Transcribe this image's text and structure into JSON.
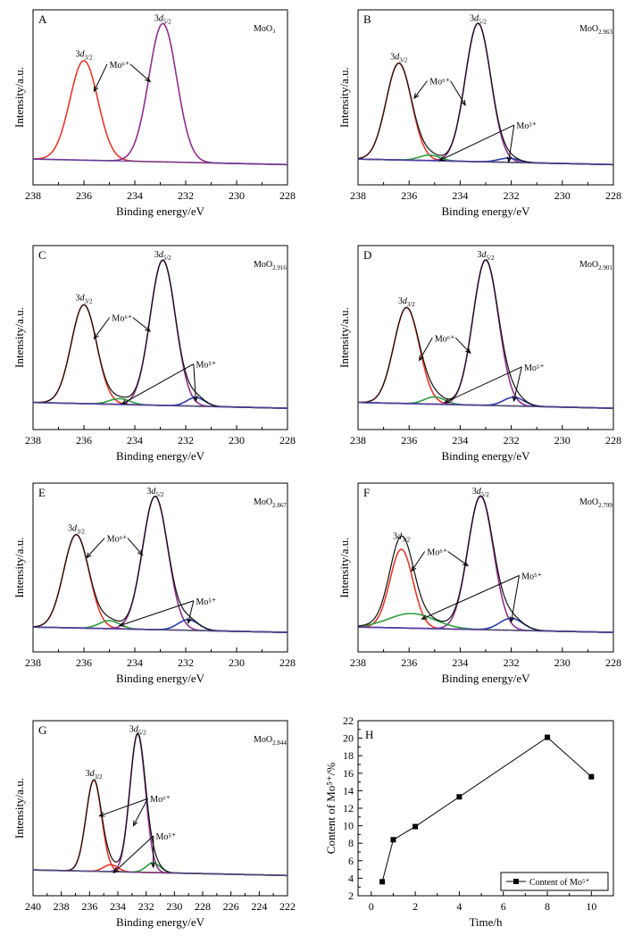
{
  "chart_data": [
    {
      "type": "line",
      "panel": "A",
      "sample": "MoO₃",
      "xlabel": "Binding energy/eV",
      "ylabel": "Intensity/a.u.",
      "xlim": [
        238,
        228
      ],
      "xticks": [
        238,
        236,
        234,
        232,
        230,
        228
      ],
      "peaks": [
        {
          "label": "3d3/2",
          "center": 236.0,
          "height": 0.72,
          "width": 0.55,
          "color": "#e8382b"
        },
        {
          "label": "3d5/2",
          "center": 232.9,
          "height": 1.0,
          "width": 0.55,
          "color": "#8e2f8f"
        }
      ],
      "annotations": [
        {
          "text": "Mo⁶⁺",
          "x": 234.6,
          "y": 0.72,
          "targets": [
            [
              235.6,
              0.55
            ],
            [
              233.4,
              0.62
            ]
          ]
        },
        {
          "text": "3d3/2",
          "x": 236.0,
          "y": 0.8
        },
        {
          "text": "3d5/2",
          "x": 232.9,
          "y": 1.06
        }
      ]
    },
    {
      "type": "line",
      "panel": "B",
      "sample": "MoO2.963",
      "xlabel": "Binding energy/eV",
      "ylabel": "Intensity/a.u.",
      "xlim": [
        238,
        228
      ],
      "xticks": [
        238,
        236,
        234,
        232,
        230,
        228
      ],
      "peaks": [
        {
          "label": "3d3/2",
          "center": 236.4,
          "height": 0.7,
          "width": 0.5,
          "color": "#e8382b"
        },
        {
          "label": "3d5/2",
          "center": 233.3,
          "height": 1.0,
          "width": 0.5,
          "color": "#8e2f8f"
        },
        {
          "label": "Mo5+ 3d3/2",
          "center": 235.2,
          "height": 0.04,
          "width": 0.4,
          "color": "#2e9e3e"
        },
        {
          "label": "Mo5+ 3d5/2",
          "center": 232.1,
          "height": 0.03,
          "width": 0.4,
          "color": "#2b3ea8"
        }
      ],
      "annotations": [
        {
          "text": "Mo⁶⁺",
          "x": 234.8,
          "y": 0.6,
          "targets": [
            [
              235.8,
              0.5
            ],
            [
              233.8,
              0.45
            ]
          ]
        },
        {
          "text": "Mo⁵⁺",
          "x": 231.4,
          "y": 0.28,
          "targets": [
            [
              234.8,
              0.05
            ],
            [
              232.1,
              0.04
            ]
          ]
        },
        {
          "text": "3d3/2",
          "x": 236.4,
          "y": 0.78
        },
        {
          "text": "3d5/2",
          "x": 233.3,
          "y": 1.06
        }
      ]
    },
    {
      "type": "line",
      "panel": "C",
      "sample": "MoO2.916",
      "xlabel": "Binding energy/eV",
      "ylabel": "Intensity/a.u.",
      "xlim": [
        238,
        228
      ],
      "xticks": [
        238,
        236,
        234,
        232,
        230,
        228
      ],
      "peaks": [
        {
          "label": "3d3/2",
          "center": 236.0,
          "height": 0.68,
          "width": 0.5,
          "color": "#e8382b"
        },
        {
          "label": "3d5/2",
          "center": 232.9,
          "height": 1.0,
          "width": 0.5,
          "color": "#8e2f8f"
        },
        {
          "label": "Mo5+ 3d3/2",
          "center": 234.6,
          "height": 0.04,
          "width": 0.4,
          "color": "#2e9e3e"
        },
        {
          "label": "Mo5+ 3d5/2",
          "center": 231.6,
          "height": 0.06,
          "width": 0.35,
          "color": "#2b3ea8"
        }
      ],
      "annotations": [
        {
          "text": "Mo⁶⁺",
          "x": 234.5,
          "y": 0.62,
          "targets": [
            [
              235.6,
              0.5
            ],
            [
              233.4,
              0.55
            ]
          ]
        },
        {
          "text": "Mo⁵⁺",
          "x": 231.2,
          "y": 0.3,
          "targets": [
            [
              234.5,
              0.05
            ],
            [
              231.6,
              0.07
            ]
          ]
        },
        {
          "text": "3d3/2",
          "x": 236.0,
          "y": 0.76
        },
        {
          "text": "3d5/2",
          "x": 232.9,
          "y": 1.06
        }
      ]
    },
    {
      "type": "line",
      "panel": "D",
      "sample": "MoO2.901",
      "xlabel": "Binding energy/eV",
      "ylabel": "Intensity/a.u.",
      "xlim": [
        238,
        228
      ],
      "xticks": [
        238,
        236,
        234,
        232,
        230,
        228
      ],
      "peaks": [
        {
          "label": "3d3/2",
          "center": 236.1,
          "height": 0.66,
          "width": 0.5,
          "color": "#e8382b"
        },
        {
          "label": "3d5/2",
          "center": 233.0,
          "height": 1.0,
          "width": 0.5,
          "color": "#8e2f8f"
        },
        {
          "label": "Mo5+ 3d3/2",
          "center": 235.0,
          "height": 0.05,
          "width": 0.4,
          "color": "#2e9e3e"
        },
        {
          "label": "Mo5+ 3d5/2",
          "center": 231.9,
          "height": 0.06,
          "width": 0.4,
          "color": "#2b3ea8"
        }
      ],
      "annotations": [
        {
          "text": "Mo⁶⁺",
          "x": 234.6,
          "y": 0.48,
          "targets": [
            [
              235.6,
              0.35
            ],
            [
              233.6,
              0.4
            ]
          ]
        },
        {
          "text": "Mo⁵⁺",
          "x": 231.1,
          "y": 0.28,
          "targets": [
            [
              234.6,
              0.06
            ],
            [
              231.9,
              0.07
            ]
          ]
        },
        {
          "text": "3d3/2",
          "x": 236.1,
          "y": 0.74
        },
        {
          "text": "3d5/2",
          "x": 233.0,
          "y": 1.06
        }
      ]
    },
    {
      "type": "line",
      "panel": "E",
      "sample": "MoO2.867",
      "xlabel": "Binding energy/eV",
      "ylabel": "Intensity/a.u.",
      "xlim": [
        238,
        228
      ],
      "xticks": [
        238,
        236,
        234,
        232,
        230,
        228
      ],
      "peaks": [
        {
          "label": "3d3/2",
          "center": 236.3,
          "height": 0.7,
          "width": 0.5,
          "color": "#e8382b"
        },
        {
          "label": "3d5/2",
          "center": 233.2,
          "height": 1.0,
          "width": 0.5,
          "color": "#8e2f8f"
        },
        {
          "label": "Mo5+ 3d3/2",
          "center": 235.0,
          "height": 0.06,
          "width": 0.4,
          "color": "#2e9e3e"
        },
        {
          "label": "Mo5+ 3d5/2",
          "center": 231.9,
          "height": 0.08,
          "width": 0.4,
          "color": "#2b3ea8"
        }
      ],
      "annotations": [
        {
          "text": "Mo⁶⁺",
          "x": 234.7,
          "y": 0.7,
          "targets": [
            [
              235.9,
              0.58
            ],
            [
              233.7,
              0.6
            ]
          ]
        },
        {
          "text": "Mo⁵⁺",
          "x": 231.2,
          "y": 0.23,
          "targets": [
            [
              234.6,
              0.07
            ],
            [
              231.9,
              0.09
            ]
          ]
        },
        {
          "text": "3d3/2",
          "x": 236.3,
          "y": 0.78
        },
        {
          "text": "3d5/2",
          "x": 233.2,
          "y": 1.06
        }
      ]
    },
    {
      "type": "line",
      "panel": "F",
      "sample": "MoO2.799",
      "xlabel": "Binding energy/eV",
      "ylabel": "Intensity/a.u.",
      "xlim": [
        238,
        228
      ],
      "xticks": [
        238,
        236,
        234,
        232,
        230,
        228
      ],
      "peaks": [
        {
          "label": "3d3/2",
          "center": 236.3,
          "height": 0.59,
          "width": 0.45,
          "color": "#e8382b"
        },
        {
          "label": "3d5/2",
          "center": 233.2,
          "height": 1.0,
          "width": 0.5,
          "color": "#8e2f8f"
        },
        {
          "label": "Mo5+ 3d3/2",
          "center": 235.9,
          "height": 0.11,
          "width": 0.9,
          "color": "#2e9e3e"
        },
        {
          "label": "Mo5+ 3d5/2",
          "center": 232.0,
          "height": 0.09,
          "width": 0.45,
          "color": "#2b3ea8"
        }
      ],
      "annotations": [
        {
          "text": "Mo⁶⁺",
          "x": 234.9,
          "y": 0.6,
          "targets": [
            [
              235.9,
              0.48
            ],
            [
              233.7,
              0.52
            ]
          ]
        },
        {
          "text": "Mo⁵⁺",
          "x": 231.2,
          "y": 0.42,
          "targets": [
            [
              235.5,
              0.12
            ],
            [
              232.0,
              0.1
            ]
          ]
        },
        {
          "text": "3d3/2",
          "x": 236.3,
          "y": 0.72
        },
        {
          "text": "3d5/2",
          "x": 233.2,
          "y": 1.06
        }
      ]
    },
    {
      "type": "line",
      "panel": "G",
      "sample": "MoO2.844",
      "xlabel": "Binding energy/eV",
      "ylabel": "Intensity/a.u.",
      "xlim": [
        240,
        222
      ],
      "xticks": [
        240,
        238,
        236,
        234,
        232,
        230,
        228,
        226,
        224,
        222
      ],
      "peaks": [
        {
          "label": "3d3/2",
          "center": 235.7,
          "height": 0.66,
          "width": 0.55,
          "color": "#e8382b"
        },
        {
          "label": "3d5/2",
          "center": 232.6,
          "height": 1.0,
          "width": 0.55,
          "color": "#8e2f8f"
        },
        {
          "label": "Mo5+ 3d3/2",
          "center": 234.5,
          "height": 0.05,
          "width": 0.5,
          "color": "#e8382b"
        },
        {
          "label": "Mo5+ 3d5/2",
          "center": 231.5,
          "height": 0.07,
          "width": 0.5,
          "color": "#2e9e3e"
        }
      ],
      "annotations": [
        {
          "text": "Mo⁶⁺",
          "x": 231.0,
          "y": 0.55,
          "targets": [
            [
              235.3,
              0.45
            ],
            [
              232.9,
              0.38
            ]
          ]
        },
        {
          "text": "Mo⁵⁺",
          "x": 230.6,
          "y": 0.28,
          "targets": [
            [
              234.3,
              0.04
            ],
            [
              231.5,
              0.08
            ]
          ]
        },
        {
          "text": "3d3/2",
          "x": 235.7,
          "y": 0.74
        },
        {
          "text": "3d5/2",
          "x": 232.6,
          "y": 1.06
        }
      ]
    },
    {
      "type": "line",
      "panel": "H",
      "xlabel": "Time/h",
      "ylabel": "Content of Mo⁵⁺/%",
      "xlim": [
        -0.6,
        11
      ],
      "ylim": [
        2,
        22
      ],
      "xticks": [
        0,
        2,
        4,
        6,
        8,
        10
      ],
      "yticks": [
        2,
        4,
        6,
        8,
        10,
        12,
        14,
        16,
        18,
        20,
        22
      ],
      "series": [
        {
          "name": "Content of Mo⁵⁺",
          "x": [
            0.5,
            1,
            2,
            4,
            8,
            10
          ],
          "y": [
            3.6,
            8.4,
            9.9,
            13.3,
            20.1,
            15.6
          ]
        }
      ],
      "legend": "bottom-right"
    }
  ],
  "text": {
    "panel_a": "A",
    "panel_b": "B",
    "panel_c": "C",
    "panel_d": "D",
    "panel_e": "E",
    "panel_f": "F",
    "panel_g": "G",
    "panel_h": "H",
    "legend_label": "Content of Mo⁵⁺"
  }
}
